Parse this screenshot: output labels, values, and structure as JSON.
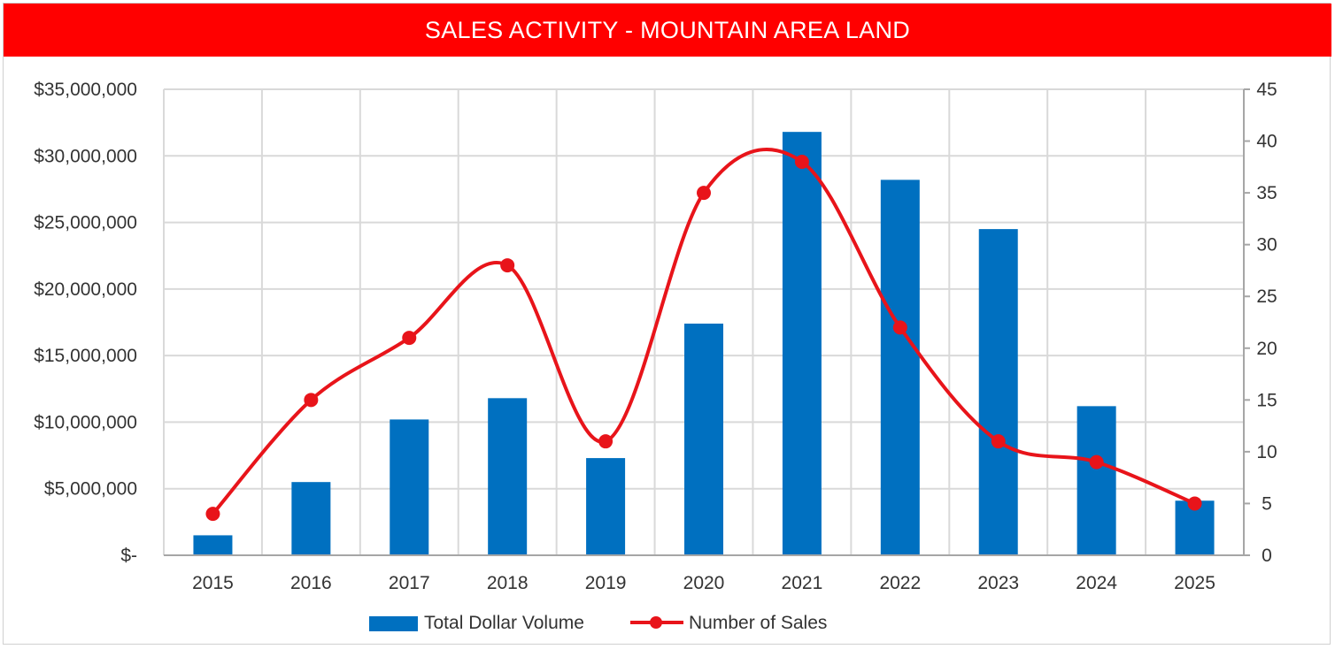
{
  "title": "SALES ACTIVITY - MOUNTAIN AREA LAND",
  "colors": {
    "banner": "#ff0000",
    "bars": "#0070c0",
    "line": "#e8141a",
    "grid": "#d9d9d9",
    "text": "#333333"
  },
  "chart_data": {
    "type": "bar+line",
    "categories": [
      "2015",
      "2016",
      "2017",
      "2018",
      "2019",
      "2020",
      "2021",
      "2022",
      "2023",
      "2024",
      "2025"
    ],
    "series": [
      {
        "name": "Total Dollar Volume",
        "type": "bar",
        "axis": "left",
        "values": [
          1500000,
          5500000,
          10200000,
          11800000,
          7300000,
          17400000,
          31800000,
          28200000,
          24500000,
          11200000,
          4100000
        ]
      },
      {
        "name": "Number of Sales",
        "type": "line",
        "axis": "right",
        "smooth": true,
        "values": [
          4,
          15,
          21,
          28,
          11,
          35,
          38,
          22,
          11,
          9,
          5
        ]
      }
    ],
    "y_left": {
      "ylim": [
        0,
        35000000
      ],
      "tick_labels": [
        "$-",
        "$5,000,000",
        "$10,000,000",
        "$15,000,000",
        "$20,000,000",
        "$25,000,000",
        "$30,000,000",
        "$35,000,000"
      ]
    },
    "y_right": {
      "ylim": [
        0,
        45
      ],
      "tick_labels": [
        "0",
        "5",
        "10",
        "15",
        "20",
        "25",
        "30",
        "35",
        "40",
        "45"
      ]
    },
    "grid": true,
    "legend": {
      "placement": "bottom-center",
      "entries": [
        "Total Dollar Volume",
        "Number of Sales"
      ]
    }
  }
}
